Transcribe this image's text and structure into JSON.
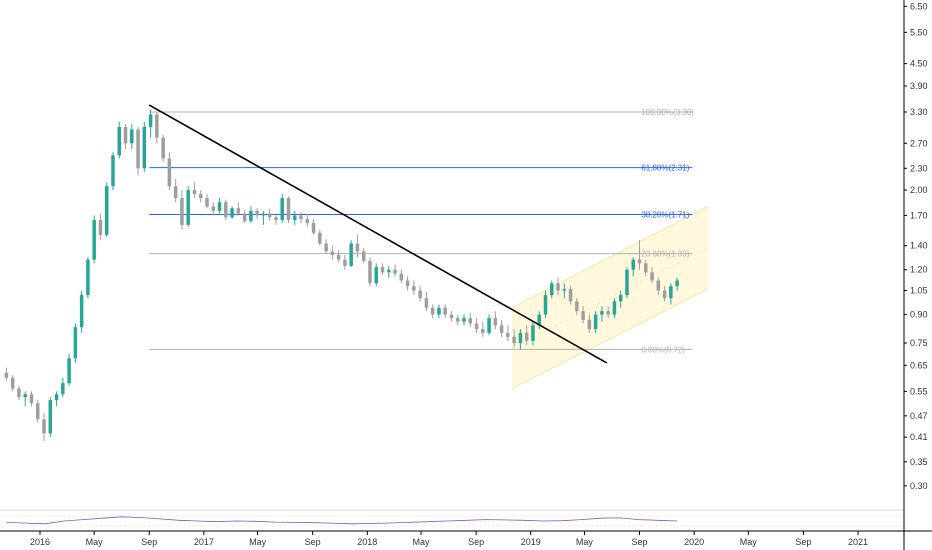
{
  "chart_data": {
    "type": "candlestick",
    "y_scale": "log",
    "ylim": [
      0.27,
      6.9
    ],
    "grid": false,
    "y_ticks": [
      "6.50",
      "5.50",
      "4.50",
      "3.90",
      "3.30",
      "2.70",
      "2.30",
      "2.00",
      "1.70",
      "1.40",
      "1.20",
      "1.05",
      "0.90",
      "0.75",
      "0.65",
      "0.55",
      "0.47",
      "0.41",
      "0.35",
      "0.30"
    ],
    "x_ticks": [
      "2016",
      "May",
      "Sep",
      "2017",
      "May",
      "Sep",
      "2018",
      "May",
      "Sep",
      "2019",
      "May",
      "Sep",
      "2020",
      "May",
      "Sep",
      "2021"
    ],
    "x_tick_dates": [
      "2016-01",
      "2016-05",
      "2016-09",
      "2017-01",
      "2017-05",
      "2017-09",
      "2018-01",
      "2018-05",
      "2018-09",
      "2019-01",
      "2019-05",
      "2019-09",
      "2020-01",
      "2020-05",
      "2020-09",
      "2021-01"
    ],
    "series": [
      {
        "values": [
          [
            "2015-10-18",
            0.62,
            0.64,
            0.59,
            0.6
          ],
          [
            "2015-11-01",
            0.6,
            0.61,
            0.55,
            0.56
          ],
          [
            "2015-11-15",
            0.56,
            0.57,
            0.52,
            0.53
          ],
          [
            "2015-11-29",
            0.53,
            0.55,
            0.5,
            0.54
          ],
          [
            "2015-12-13",
            0.54,
            0.55,
            0.5,
            0.51
          ],
          [
            "2015-12-27",
            0.51,
            0.52,
            0.45,
            0.46
          ],
          [
            "2016-01-10",
            0.46,
            0.48,
            0.4,
            0.42
          ],
          [
            "2016-01-24",
            0.42,
            0.53,
            0.41,
            0.52
          ],
          [
            "2016-02-07",
            0.52,
            0.55,
            0.5,
            0.54
          ],
          [
            "2016-02-21",
            0.54,
            0.6,
            0.53,
            0.58
          ],
          [
            "2016-03-06",
            0.58,
            0.7,
            0.57,
            0.68
          ],
          [
            "2016-03-20",
            0.68,
            0.85,
            0.66,
            0.83
          ],
          [
            "2016-04-03",
            0.83,
            1.05,
            0.8,
            1.02
          ],
          [
            "2016-04-17",
            1.02,
            1.3,
            1.0,
            1.28
          ],
          [
            "2016-05-01",
            1.28,
            1.7,
            1.25,
            1.65
          ],
          [
            "2016-05-15",
            1.65,
            1.72,
            1.45,
            1.5
          ],
          [
            "2016-05-29",
            1.5,
            2.1,
            1.48,
            2.05
          ],
          [
            "2016-06-12",
            2.05,
            2.55,
            2.0,
            2.5
          ],
          [
            "2016-06-26",
            2.5,
            3.1,
            2.45,
            3.0
          ],
          [
            "2016-07-10",
            3.0,
            3.05,
            2.6,
            2.7
          ],
          [
            "2016-07-24",
            2.7,
            3.05,
            2.6,
            2.95
          ],
          [
            "2016-08-07",
            2.95,
            3.0,
            2.2,
            2.3
          ],
          [
            "2016-08-21",
            2.3,
            3.1,
            2.25,
            3.0
          ],
          [
            "2016-09-04",
            3.0,
            3.35,
            2.8,
            3.25
          ],
          [
            "2016-09-18",
            3.25,
            3.3,
            2.7,
            2.8
          ],
          [
            "2016-10-02",
            2.8,
            2.85,
            2.4,
            2.45
          ],
          [
            "2016-10-16",
            2.45,
            2.55,
            2.0,
            2.05
          ],
          [
            "2016-10-30",
            2.05,
            2.15,
            1.85,
            1.9
          ],
          [
            "2016-11-13",
            1.9,
            2.0,
            1.55,
            1.6
          ],
          [
            "2016-11-27",
            1.6,
            2.05,
            1.58,
            2.0
          ],
          [
            "2016-12-11",
            2.0,
            2.1,
            1.9,
            1.95
          ],
          [
            "2016-12-25",
            1.95,
            2.0,
            1.85,
            1.9
          ],
          [
            "2017-01-08",
            1.9,
            1.95,
            1.78,
            1.8
          ],
          [
            "2017-01-22",
            1.8,
            1.85,
            1.7,
            1.75
          ],
          [
            "2017-02-05",
            1.75,
            1.9,
            1.72,
            1.85
          ],
          [
            "2017-02-19",
            1.85,
            1.88,
            1.65,
            1.68
          ],
          [
            "2017-03-05",
            1.68,
            1.8,
            1.66,
            1.78
          ],
          [
            "2017-03-19",
            1.78,
            1.85,
            1.7,
            1.72
          ],
          [
            "2017-04-02",
            1.72,
            1.76,
            1.62,
            1.64
          ],
          [
            "2017-04-16",
            1.64,
            1.8,
            1.62,
            1.75
          ],
          [
            "2017-04-30",
            1.75,
            1.78,
            1.66,
            1.7
          ],
          [
            "2017-05-14",
            1.7,
            1.75,
            1.6,
            1.72
          ],
          [
            "2017-05-28",
            1.72,
            1.77,
            1.64,
            1.68
          ],
          [
            "2017-06-11",
            1.68,
            1.72,
            1.6,
            1.65
          ],
          [
            "2017-06-25",
            1.65,
            1.95,
            1.62,
            1.9
          ],
          [
            "2017-07-09",
            1.9,
            1.92,
            1.62,
            1.65
          ],
          [
            "2017-07-23",
            1.65,
            1.75,
            1.6,
            1.7
          ],
          [
            "2017-08-06",
            1.7,
            1.74,
            1.62,
            1.66
          ],
          [
            "2017-08-20",
            1.66,
            1.72,
            1.58,
            1.62
          ],
          [
            "2017-09-03",
            1.62,
            1.66,
            1.5,
            1.52
          ],
          [
            "2017-09-17",
            1.52,
            1.55,
            1.4,
            1.42
          ],
          [
            "2017-10-01",
            1.42,
            1.46,
            1.33,
            1.35
          ],
          [
            "2017-10-15",
            1.35,
            1.4,
            1.28,
            1.32
          ],
          [
            "2017-10-29",
            1.32,
            1.36,
            1.26,
            1.28
          ],
          [
            "2017-11-12",
            1.28,
            1.32,
            1.2,
            1.23
          ],
          [
            "2017-11-26",
            1.23,
            1.45,
            1.22,
            1.42
          ],
          [
            "2017-12-10",
            1.42,
            1.5,
            1.3,
            1.35
          ],
          [
            "2017-12-24",
            1.35,
            1.38,
            1.25,
            1.27
          ],
          [
            "2018-01-07",
            1.27,
            1.3,
            1.08,
            1.1
          ],
          [
            "2018-01-21",
            1.1,
            1.25,
            1.08,
            1.22
          ],
          [
            "2018-02-04",
            1.22,
            1.25,
            1.16,
            1.18
          ],
          [
            "2018-02-18",
            1.18,
            1.23,
            1.14,
            1.2
          ],
          [
            "2018-03-04",
            1.2,
            1.24,
            1.15,
            1.17
          ],
          [
            "2018-03-18",
            1.17,
            1.2,
            1.1,
            1.12
          ],
          [
            "2018-04-01",
            1.12,
            1.15,
            1.05,
            1.08
          ],
          [
            "2018-04-15",
            1.08,
            1.12,
            1.02,
            1.05
          ],
          [
            "2018-04-29",
            1.05,
            1.08,
            0.98,
            1.0
          ],
          [
            "2018-05-13",
            1.0,
            1.04,
            0.92,
            0.94
          ],
          [
            "2018-05-27",
            0.94,
            0.96,
            0.88,
            0.9
          ],
          [
            "2018-06-10",
            0.9,
            0.96,
            0.88,
            0.94
          ],
          [
            "2018-06-24",
            0.94,
            0.96,
            0.88,
            0.9
          ],
          [
            "2018-07-08",
            0.9,
            0.92,
            0.86,
            0.88
          ],
          [
            "2018-07-22",
            0.88,
            0.9,
            0.84,
            0.86
          ],
          [
            "2018-08-05",
            0.86,
            0.9,
            0.84,
            0.88
          ],
          [
            "2018-08-19",
            0.88,
            0.91,
            0.83,
            0.85
          ],
          [
            "2018-09-02",
            0.85,
            0.88,
            0.8,
            0.82
          ],
          [
            "2018-09-16",
            0.82,
            0.86,
            0.78,
            0.8
          ],
          [
            "2018-09-30",
            0.8,
            0.9,
            0.79,
            0.88
          ],
          [
            "2018-10-14",
            0.88,
            0.92,
            0.82,
            0.84
          ],
          [
            "2018-10-28",
            0.84,
            0.87,
            0.78,
            0.8
          ],
          [
            "2018-11-11",
            0.8,
            0.84,
            0.76,
            0.78
          ],
          [
            "2018-11-25",
            0.78,
            0.82,
            0.73,
            0.75
          ],
          [
            "2018-12-09",
            0.75,
            0.82,
            0.72,
            0.8
          ],
          [
            "2018-12-23",
            0.8,
            0.84,
            0.74,
            0.76
          ],
          [
            "2019-01-06",
            0.76,
            0.86,
            0.74,
            0.84
          ],
          [
            "2019-01-20",
            0.84,
            0.92,
            0.82,
            0.9
          ],
          [
            "2019-02-03",
            0.9,
            1.05,
            0.88,
            1.02
          ],
          [
            "2019-02-17",
            1.02,
            1.12,
            1.0,
            1.1
          ],
          [
            "2019-03-03",
            1.1,
            1.14,
            1.02,
            1.05
          ],
          [
            "2019-03-17",
            1.05,
            1.1,
            1.0,
            1.06
          ],
          [
            "2019-03-31",
            1.06,
            1.08,
            0.96,
            0.98
          ],
          [
            "2019-04-14",
            0.98,
            1.0,
            0.9,
            0.92
          ],
          [
            "2019-04-28",
            0.92,
            0.95,
            0.85,
            0.87
          ],
          [
            "2019-05-12",
            0.87,
            0.9,
            0.8,
            0.82
          ],
          [
            "2019-05-26",
            0.82,
            0.92,
            0.8,
            0.9
          ],
          [
            "2019-06-09",
            0.9,
            0.95,
            0.86,
            0.92
          ],
          [
            "2019-06-23",
            0.92,
            0.95,
            0.88,
            0.9
          ],
          [
            "2019-07-07",
            0.9,
            1.0,
            0.88,
            0.98
          ],
          [
            "2019-07-21",
            0.98,
            1.05,
            0.94,
            1.02
          ],
          [
            "2019-08-04",
            1.02,
            1.22,
            1.0,
            1.2
          ],
          [
            "2019-08-18",
            1.2,
            1.3,
            1.15,
            1.28
          ],
          [
            "2019-09-01",
            1.28,
            1.45,
            1.2,
            1.25
          ],
          [
            "2019-09-15",
            1.25,
            1.28,
            1.15,
            1.18
          ],
          [
            "2019-09-29",
            1.18,
            1.22,
            1.1,
            1.12
          ],
          [
            "2019-10-13",
            1.12,
            1.14,
            1.02,
            1.05
          ],
          [
            "2019-10-27",
            1.05,
            1.08,
            0.98,
            1.0
          ],
          [
            "2019-11-10",
            1.0,
            1.1,
            0.96,
            1.08
          ],
          [
            "2019-11-24",
            1.08,
            1.14,
            1.05,
            1.12
          ]
        ]
      }
    ],
    "trendline": [
      [
        "2016-09-01",
        3.45
      ],
      [
        "2019-06-20",
        0.66
      ]
    ],
    "channel": {
      "upper": [
        [
          "2018-11-20",
          0.94
        ],
        [
          "2020-02-01",
          1.8
        ]
      ],
      "lower": [
        [
          "2018-11-20",
          0.56
        ],
        [
          "2020-02-01",
          1.06
        ]
      ]
    },
    "fibonacci": {
      "start": "2016-09-01",
      "end": "2019-12-28",
      "levels": [
        {
          "label": "100.00%(3.30)",
          "price": 3.3,
          "color": "#b0b0b0"
        },
        {
          "label": "61.80%(2.31)",
          "price": 2.31,
          "color": "#2962ff"
        },
        {
          "label": "38.20%(1.71)",
          "price": 1.71,
          "color": "#2962ff"
        },
        {
          "label": "23.60%(1.33)",
          "price": 1.33,
          "color": "#b0b0b0"
        },
        {
          "label": "0.00%(0.72)",
          "price": 0.72,
          "color": "#b0b0b0"
        }
      ]
    },
    "oscillator_values": [
      0.4,
      0.35,
      0.3,
      0.5,
      0.6,
      0.7,
      0.8,
      0.75,
      0.65,
      0.55,
      0.5,
      0.45,
      0.5,
      0.48,
      0.42,
      0.4,
      0.38,
      0.35,
      0.3,
      0.32,
      0.36,
      0.4,
      0.45,
      0.5,
      0.55,
      0.6,
      0.58,
      0.55,
      0.5,
      0.52,
      0.6,
      0.7,
      0.72,
      0.6,
      0.55,
      0.5
    ],
    "colors": {
      "up": "#26a69a",
      "down": "#9e9e9e",
      "trendline": "#000000",
      "channel_fill": "#fff8dc",
      "channel_line": "#f5e6a8",
      "axis": "#000000"
    }
  }
}
